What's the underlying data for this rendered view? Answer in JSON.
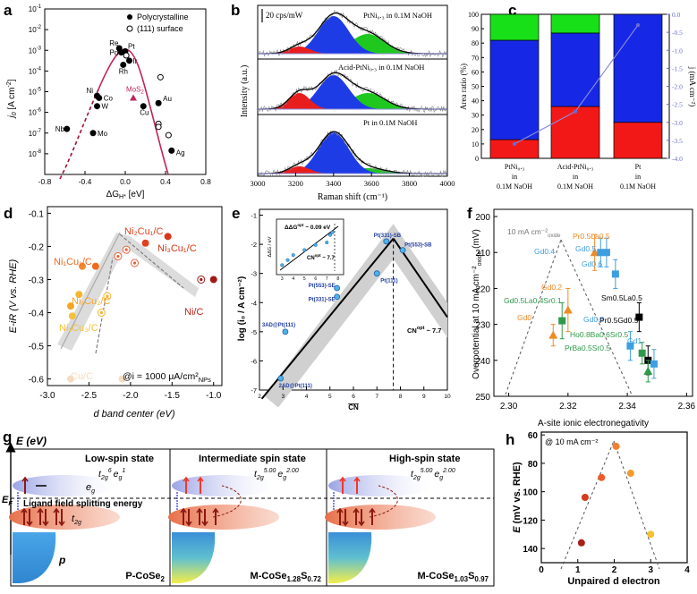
{
  "panels": {
    "a": {
      "letter": "a",
      "ylabel": "j",
      "ylabel_sub": "0",
      "ylabel_unit": "[A cm",
      "ylabel_unit_sup": "-2",
      "ylabel_unit_end": "]",
      "xlabel": "ΔG",
      "xlabel_sub": "H*",
      "xlabel_unit": "[eV]",
      "yticks": [
        "10^{-1}",
        "10^{-2}",
        "10^{-3}",
        "10^{-4}",
        "10^{-5}",
        "10^{-6}",
        "10^{-7}",
        "10^{-8}"
      ],
      "xticks": [
        "-0.8",
        "-0.4",
        "0.0",
        "0.4",
        "0.8"
      ],
      "legend": [
        {
          "label": "Polycrystalline",
          "marker": "filled-circle"
        },
        {
          "label": "(111) surface",
          "marker": "open-circle"
        }
      ],
      "mos2_label": "MoS",
      "mos2_sub": "2",
      "points": [
        {
          "label": "Nb",
          "x": -0.58,
          "logy": -6.8,
          "type": "filled"
        },
        {
          "label": "Mo",
          "x": -0.32,
          "logy": -7.0,
          "type": "filled"
        },
        {
          "label": "W",
          "x": -0.28,
          "logy": -5.7,
          "type": "filled"
        },
        {
          "label": "Co",
          "x": -0.26,
          "logy": -5.3,
          "type": "filled"
        },
        {
          "label": "Ni",
          "x": -0.28,
          "logy": -5.2,
          "type": "filled"
        },
        {
          "label": "Re",
          "x": -0.06,
          "logy": -2.9,
          "type": "filled"
        },
        {
          "label": "Pd",
          "x": -0.04,
          "logy": -3.1,
          "type": "filled"
        },
        {
          "label": "Pt",
          "x": 0.0,
          "logy": -3.05,
          "type": "filled"
        },
        {
          "label": "Ir",
          "x": 0.04,
          "logy": -3.5,
          "type": "filled"
        },
        {
          "label": "Rh",
          "x": -0.02,
          "logy": -3.7,
          "type": "filled"
        },
        {
          "label": "Cu",
          "x": 0.18,
          "logy": -5.7,
          "type": "filled"
        },
        {
          "label": "Au",
          "x": 0.33,
          "logy": -5.55,
          "type": "filled"
        },
        {
          "label": "Ag",
          "x": 0.46,
          "logy": -7.85,
          "type": "filled"
        },
        {
          "label": "",
          "x": 0.35,
          "logy": -4.3,
          "type": "open"
        },
        {
          "label": "",
          "x": 0.33,
          "logy": -6.55,
          "type": "open"
        },
        {
          "label": "",
          "x": 0.33,
          "logy": -6.7,
          "type": "open"
        },
        {
          "label": "",
          "x": 0.43,
          "logy": -7.1,
          "type": "open"
        },
        {
          "label": "",
          "x": 0.01,
          "logy": -3.25,
          "type": "open"
        }
      ],
      "mos2_point": {
        "x": 0.08,
        "logy": -5.3
      }
    },
    "b": {
      "letter": "b",
      "scalebar": "20 cps/mW",
      "ylabel": "Intensity (a.u.)",
      "xlabel": "Raman shift (cm⁻¹)",
      "xticks": [
        "3000",
        "3200",
        "3400",
        "3600",
        "3800",
        "4000"
      ],
      "spectra": [
        "PtNi₀.₃ in 0.1M NaOH",
        "Acid-PtNi₀.₃ in 0.1M NaOH",
        "Pt in 0.1M NaOH"
      ]
    },
    "c": {
      "letter": "c",
      "ylabel": "Area ratio (%)",
      "y2label": "j (mA cm⁻²)",
      "yticks": [
        "0",
        "10",
        "20",
        "30",
        "40",
        "50",
        "60",
        "70",
        "80",
        "90",
        "100"
      ],
      "y2ticks": [
        "0.0",
        "-0.5",
        "-1.0",
        "-1.5",
        "-2.0",
        "-2.5",
        "-3.0",
        "-3.5",
        "-4.0"
      ],
      "categories": [
        [
          "PtNi₀.₃",
          "in",
          "0.1M NaOH"
        ],
        [
          "Acid-PtNi₀.₃",
          "in",
          "0.1M NaOH"
        ],
        [
          "Pt",
          "in",
          "0.1M NaOH"
        ]
      ],
      "red": [
        13,
        36,
        25
      ],
      "blue": [
        69,
        51,
        75
      ],
      "green": [
        18,
        13,
        0
      ],
      "j": [
        -3.6,
        -2.7,
        -0.3
      ]
    },
    "d": {
      "letter": "d",
      "ylabel": "E-iR (V vs. RHE)",
      "xlabel": "d band center (eV)",
      "yticks": [
        "-0.1",
        "-0.2",
        "-0.3",
        "-0.4",
        "-0.5",
        "-0.6"
      ],
      "xticks": [
        "-3.0",
        "-2.5",
        "-2.0",
        "-1.5",
        "-1.0"
      ],
      "annotation": "@i = 1000 μA/cm²",
      "annotation_sub": "NPs",
      "labels": [
        "Ni₂Cu₁/C",
        "Ni₃Cu₁/C",
        "Ni₁Cu₁/C",
        "Ni₁Cu₂/C",
        "Ni₁Cu₃/C",
        "Ni/C",
        "Cu/C"
      ]
    },
    "e": {
      "letter": "e",
      "ylabel": "log (i₀ / A cm⁻²)",
      "xlabel": "CN",
      "yticks": [
        "-1",
        "-2",
        "-3",
        "-4",
        "-5",
        "-6",
        "-7"
      ],
      "xticks": [
        "2",
        "3",
        "4",
        "5",
        "6",
        "7",
        "8",
        "9",
        "10"
      ],
      "peak_label": "CN",
      "peak_sup": "opt",
      "peak_value": " ~ 7.7",
      "inset_label": "ΔΔG",
      "inset_sup": "opt",
      "inset_value": " ~ 0.09 eV",
      "inset_ylabel": "ΔΔG / eV",
      "inset_cn": "CN",
      "inset_cn_sup": "opt",
      "inset_cn_value": " ~ 7.7",
      "inset_xticks": [
        "3",
        "4",
        "5",
        "6",
        "7",
        "8"
      ],
      "points": [
        {
          "label": "2AD@Pt(111)",
          "x": 2.9,
          "y": -6.6
        },
        {
          "label": "3AD@Pt(111)",
          "x": 3.1,
          "y": -5.0
        },
        {
          "label": "Pt(331)-SE",
          "x": 5.3,
          "y": -3.8
        },
        {
          "label": "Pt(553)-SE",
          "x": 5.3,
          "y": -3.5
        },
        {
          "label": "Pt(111)",
          "x": 7.0,
          "y": -3.0
        },
        {
          "label": "Pt(331)-SB",
          "x": 7.4,
          "y": -1.9
        },
        {
          "label": "Pt(553)-SB",
          "x": 8.1,
          "y": -2.2
        }
      ]
    },
    "f": {
      "letter": "f",
      "ylabel": "Overpotential at 10 mA cm⁻²",
      "ylabel_sub": "oxide",
      "ylabel_unit": " (mV)",
      "xlabel": "A-site ionic electronegativity",
      "yticks": [
        "200",
        "210",
        "220",
        "230",
        "240",
        "250"
      ],
      "xticks": [
        "2.30",
        "2.32",
        "2.34",
        "2.36"
      ],
      "annotation": "10 mA cm⁻²",
      "annotation_sub": "oxide",
      "labels": [
        {
          "text": "Pr0.5La0.5",
          "color": "#f08a24"
        },
        {
          "text": "Gd0.4",
          "color": "#3d9ee0"
        },
        {
          "text": "Gd0.5",
          "color": "#3d9ee0"
        },
        {
          "text": "Gd0.6",
          "color": "#3d9ee0"
        },
        {
          "text": "Gd0.2",
          "color": "#f08a24"
        },
        {
          "text": "Gd0.5La0.4Sr0.1",
          "color": "#2e9a4a"
        },
        {
          "text": "Gd0",
          "color": "#f08a24"
        },
        {
          "text": "Sm0.5La0.5",
          "color": "#000000"
        },
        {
          "text": "Gd0.8",
          "color": "#3d9ee0"
        },
        {
          "text": "Pr0.5Gd0.5",
          "color": "#000000"
        },
        {
          "text": "Ho0.8Ba0.6Sr0.5",
          "color": "#2e9a4a"
        },
        {
          "text": "Gd1",
          "color": "#3d9ee0"
        },
        {
          "text": "PrBa0.5Sr0.5",
          "color": "#2e9a4a"
        }
      ]
    },
    "g": {
      "letter": "g",
      "axis_label": "E (eV)",
      "ef_label": "E",
      "ef_sub": "F",
      "states": [
        "Low-spin state",
        "Intermediate spin state",
        "High-spin state"
      ],
      "config1": {
        "t2g": "t",
        "t2g_sub": "2g",
        "t2g_sup": "6",
        "eg": "e",
        "eg_sub": "g",
        "eg_sup": "1"
      },
      "config2": {
        "t2g": "t",
        "t2g_sub": "2g",
        "t2g_sup": "5.00",
        "eg": "e",
        "eg_sub": "g",
        "eg_sup": "2.00"
      },
      "config3": {
        "t2g": "t",
        "t2g_sub": "2g",
        "t2g_sup": "5.00",
        "eg": "e",
        "eg_sub": "g",
        "eg_sup": "2.00"
      },
      "eg_label": "e",
      "eg_label_sub": "g",
      "t2g_label": "t",
      "t2g_label_sub": "2g",
      "p_label": "p",
      "splitting": "Ligand field splitting energy",
      "materials": [
        {
          "main": "P-CoSe",
          "sub": "2"
        },
        {
          "main": "M-CoSe",
          "sub1": "1.28",
          "mid": "S",
          "sub2": "0.72"
        },
        {
          "main": "M-CoSe",
          "sub1": "1.03",
          "mid": "S",
          "sub2": "0.97"
        }
      ]
    },
    "h": {
      "letter": "h",
      "annotation": "@ 10 mA cm⁻²",
      "ylabel": "E",
      "ylabel_unit": " (mV vs. RHE)",
      "xlabel": "Unpaired d electron",
      "yticks": [
        "60",
        "80",
        "100",
        "120",
        "140"
      ],
      "xticks": [
        "0",
        "1",
        "2",
        "3",
        "4"
      ],
      "points": [
        {
          "x": 1.1,
          "y": 136,
          "color": "#a8201a"
        },
        {
          "x": 1.2,
          "y": 104,
          "color": "#d63a1e"
        },
        {
          "x": 1.65,
          "y": 90,
          "color": "#f05a28"
        },
        {
          "x": 2.05,
          "y": 68,
          "color": "#f28030"
        },
        {
          "x": 2.45,
          "y": 87,
          "color": "#f39a2c"
        },
        {
          "x": 3.0,
          "y": 130,
          "color": "#f5c031"
        }
      ]
    }
  },
  "chart_data": [
    {
      "type": "scatter",
      "panel": "a",
      "xlabel": "ΔG_H* [eV]",
      "ylabel": "j0 [A cm-2]",
      "xlim": [
        -0.8,
        0.8
      ],
      "ylim": [
        1e-09,
        0.1
      ],
      "yscale": "log",
      "series": [
        {
          "name": "Polycrystalline",
          "points": [
            {
              "label": "Nb",
              "x": -0.58,
              "y": 1.6e-07
            },
            {
              "label": "Mo",
              "x": -0.32,
              "y": 1e-07
            },
            {
              "label": "W",
              "x": -0.28,
              "y": 2e-06
            },
            {
              "label": "Co",
              "x": -0.26,
              "y": 5e-06
            },
            {
              "label": "Ni",
              "x": -0.28,
              "y": 6.3e-06
            },
            {
              "label": "Re",
              "x": -0.06,
              "y": 0.0013
            },
            {
              "label": "Pd",
              "x": -0.04,
              "y": 0.0008
            },
            {
              "label": "Pt",
              "x": 0.0,
              "y": 0.0009
            },
            {
              "label": "Ir",
              "x": 0.04,
              "y": 0.00032
            },
            {
              "label": "Rh",
              "x": -0.02,
              "y": 0.0002
            },
            {
              "label": "Cu",
              "x": 0.18,
              "y": 2e-06
            },
            {
              "label": "Au",
              "x": 0.33,
              "y": 2.8e-06
            },
            {
              "label": "Ag",
              "x": 0.46,
              "y": 1.4e-08
            }
          ]
        },
        {
          "name": "(111) surface",
          "points": [
            {
              "x": 0.35,
              "y": 5e-05
            },
            {
              "x": 0.33,
              "y": 2.8e-07
            },
            {
              "x": 0.33,
              "y": 2e-07
            },
            {
              "x": 0.43,
              "y": 8e-08
            },
            {
              "x": 0.01,
              "y": 0.00056
            }
          ]
        },
        {
          "name": "MoS2",
          "points": [
            {
              "x": 0.08,
              "y": 5e-06
            }
          ]
        }
      ]
    },
    {
      "type": "bar",
      "panel": "c",
      "categories": [
        "PtNi0.3 in 0.1M NaOH",
        "Acid-PtNi0.3 in 0.1M NaOH",
        "Pt in 0.1M NaOH"
      ],
      "ylabel": "Area ratio (%)",
      "ylim": [
        0,
        100
      ],
      "stacked": true,
      "series": [
        {
          "color": "red",
          "values": [
            13,
            36,
            25
          ]
        },
        {
          "color": "blue",
          "values": [
            69,
            51,
            75
          ]
        },
        {
          "color": "green",
          "values": [
            18,
            13,
            0
          ]
        }
      ],
      "y2label": "j (mA cm-2)",
      "y2lim": [
        -4.0,
        0.0
      ],
      "line_values": [
        -3.6,
        -2.7,
        -0.3
      ]
    },
    {
      "type": "scatter",
      "panel": "d",
      "xlabel": "d band center (eV)",
      "ylabel": "E-iR (V vs. RHE)",
      "xlim": [
        -3.0,
        -0.9
      ],
      "ylim": [
        -0.62,
        -0.08
      ],
      "annotation": "@i = 1000 μA/cm²NPs",
      "points": [
        {
          "label": "Ni2Cu1/C",
          "x": -1.82,
          "y": -0.19
        },
        {
          "label": "Ni3Cu1/C",
          "x": -1.55,
          "y": -0.17
        },
        {
          "label": "Ni1Cu1/C",
          "x": -2.42,
          "y": -0.26
        },
        {
          "label": "Ni1Cu2/C",
          "x": -2.72,
          "y": -0.38
        },
        {
          "label": "Ni1Cu3/C",
          "x": -2.7,
          "y": -0.41
        },
        {
          "label": "Ni/C",
          "x": -1.0,
          "y": -0.3
        },
        {
          "label": "Cu/C",
          "x": -2.1,
          "y": -0.6
        }
      ]
    },
    {
      "type": "scatter",
      "panel": "e",
      "xlabel": "CN",
      "ylabel": "log (i0 / A cm-2)",
      "xlim": [
        2,
        10
      ],
      "ylim": [
        -7,
        -0.8
      ],
      "points": [
        {
          "label": "2AD@Pt(111)",
          "x": 2.9,
          "y": -6.6
        },
        {
          "label": "3AD@Pt(111)",
          "x": 3.1,
          "y": -5.0
        },
        {
          "label": "Pt(331)-SE",
          "x": 5.3,
          "y": -3.8
        },
        {
          "label": "Pt(553)-SE",
          "x": 5.3,
          "y": -3.5
        },
        {
          "label": "Pt(111)",
          "x": 7.0,
          "y": -3.0
        },
        {
          "label": "Pt(331)-SB",
          "x": 7.4,
          "y": -1.9
        },
        {
          "label": "Pt(553)-SB",
          "x": 8.1,
          "y": -2.2
        }
      ],
      "annotation": "CN opt ~ 7.7"
    },
    {
      "type": "scatter",
      "panel": "f",
      "xlabel": "A-site ionic electronegativity",
      "ylabel": "Overpotential at 10 mA cm-2 oxide (mV)",
      "xlim": [
        2.295,
        2.362
      ],
      "ylim": [
        250,
        200
      ],
      "points": [
        {
          "label": "Pr0.5La0.5",
          "x": 2.329,
          "y": 210
        },
        {
          "label": "Gd0.4",
          "x": 2.331,
          "y": 210
        },
        {
          "label": "Gd0.5",
          "x": 2.333,
          "y": 210
        },
        {
          "label": "Gd0.6",
          "x": 2.336,
          "y": 216
        },
        {
          "label": "Gd0.2",
          "x": 2.32,
          "y": 226
        },
        {
          "label": "Gd0.5La0.4Sr0.1",
          "x": 2.318,
          "y": 229
        },
        {
          "label": "Gd0",
          "x": 2.315,
          "y": 233
        },
        {
          "label": "Sm0.5La0.5",
          "x": 2.344,
          "y": 228
        },
        {
          "label": "Gd0.8",
          "x": 2.341,
          "y": 236
        },
        {
          "label": "Pr0.5Gd0.5",
          "x": 2.347,
          "y": 240
        },
        {
          "label": "Ho0.8Ba0.6Sr0.5",
          "x": 2.345,
          "y": 238
        },
        {
          "label": "Gd1",
          "x": 2.349,
          "y": 241
        },
        {
          "label": "PrBa0.5Sr0.5",
          "x": 2.347,
          "y": 243
        }
      ]
    },
    {
      "type": "scatter",
      "panel": "h",
      "xlabel": "Unpaired d electron",
      "ylabel": "E (mV vs. RHE)",
      "xlim": [
        0,
        4
      ],
      "ylim": [
        150,
        60
      ],
      "annotation": "@ 10 mA cm-2",
      "points": [
        {
          "x": 1.1,
          "y": 136
        },
        {
          "x": 1.2,
          "y": 104
        },
        {
          "x": 1.65,
          "y": 90
        },
        {
          "x": 2.05,
          "y": 68
        },
        {
          "x": 2.45,
          "y": 87
        },
        {
          "x": 3.0,
          "y": 130
        }
      ]
    }
  ]
}
